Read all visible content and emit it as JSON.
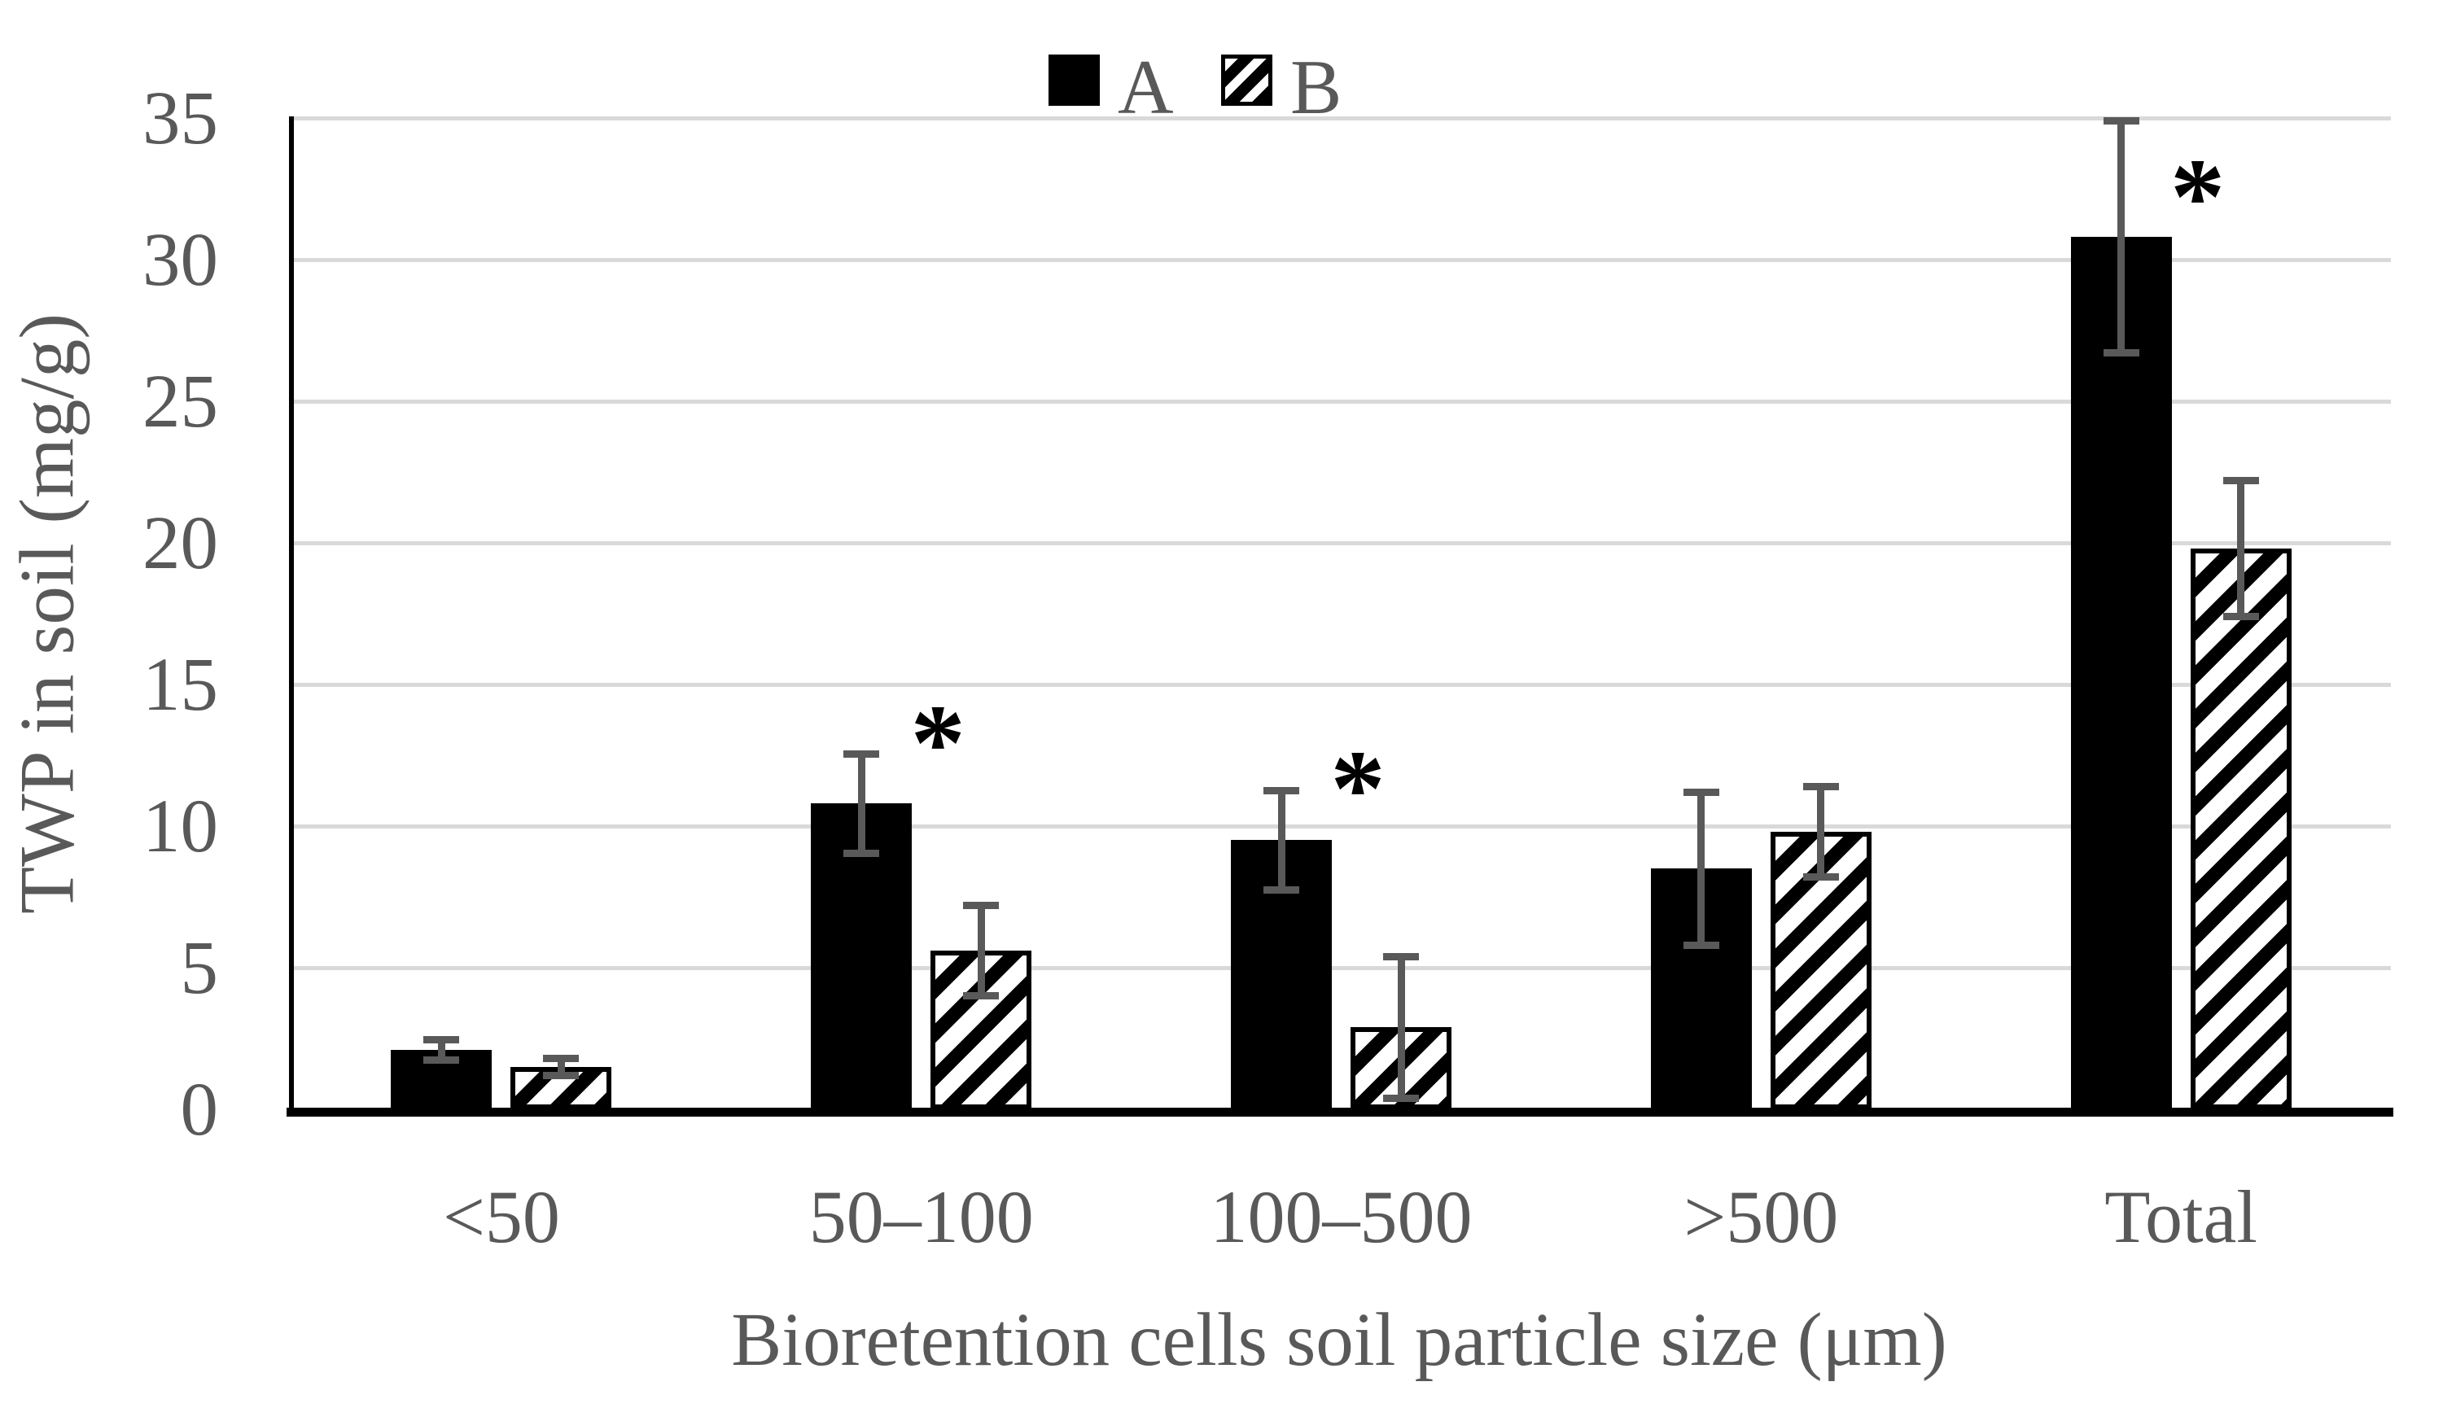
{
  "figure": {
    "background": "#ffffff"
  },
  "legend": {
    "position": "top-center",
    "items": [
      {
        "label": "A",
        "swatch": "solid-black-square-icon"
      },
      {
        "label": "B",
        "swatch": "diagonal-hatch-square-icon"
      }
    ]
  },
  "chart_data": {
    "type": "bar",
    "title": "",
    "categories": [
      "<50",
      "50–100",
      "100–500",
      ">500",
      "Total"
    ],
    "series": [
      {
        "name": "A",
        "fill": "solid-black",
        "values": [
          2.1,
          10.8,
          9.5,
          8.5,
          30.8
        ],
        "error_bars": [
          0.35,
          1.75,
          1.75,
          2.7,
          4.1
        ]
      },
      {
        "name": "B",
        "fill": "white-with-black-diagonal-hatch",
        "values": [
          1.5,
          5.6,
          2.9,
          9.8,
          19.8
        ],
        "error_bars": [
          0.3,
          1.6,
          2.5,
          1.6,
          2.4
        ]
      }
    ],
    "significance_markers": [
      {
        "category": "50–100",
        "symbol": "*",
        "y": 13.55
      },
      {
        "category": "100–500",
        "symbol": "*",
        "y": 11.95
      },
      {
        "category": "Total",
        "symbol": "*",
        "y": 32.85
      }
    ],
    "xlabel": "Bioretention cells soil particle size (μm)",
    "ylabel": "TWP in soil (mg/g)",
    "ylim": [
      0,
      35
    ],
    "y_ticks": [
      0,
      5,
      10,
      15,
      20,
      25,
      30,
      35
    ],
    "grid": "horizontal-only",
    "legend_position": "top-center",
    "colors": {
      "series_a_fill": "#000000",
      "series_b_hatch": "#000000",
      "error_bar": "#595959",
      "gridline": "#d9d9d9",
      "axis_line": "#000000",
      "axis_text": "#595959",
      "background": "#ffffff"
    }
  }
}
